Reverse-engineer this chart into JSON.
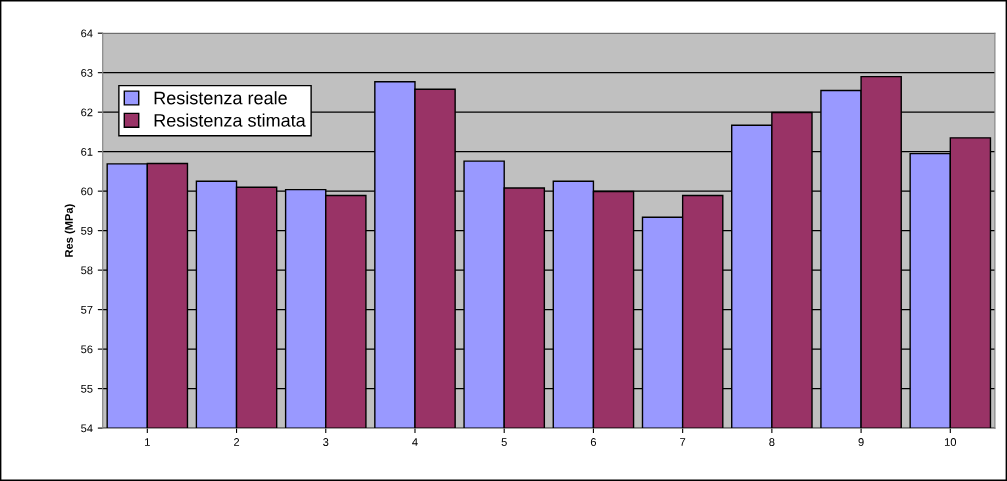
{
  "chart_data": {
    "type": "bar",
    "ylabel": "Res (MPa)",
    "categories": [
      "1",
      "2",
      "3",
      "4",
      "5",
      "6",
      "7",
      "8",
      "9",
      "10"
    ],
    "series": [
      {
        "name": "Resistenza reale",
        "color": "#9999ff",
        "values": [
          60.69,
          60.25,
          60.04,
          62.77,
          60.76,
          60.25,
          59.34,
          61.67,
          62.55,
          60.95
        ]
      },
      {
        "name": "Resistenza stimata",
        "color": "#993366",
        "values": [
          60.7,
          60.1,
          59.89,
          62.58,
          60.08,
          59.99,
          59.89,
          61.99,
          62.9,
          61.35
        ]
      }
    ],
    "ylim": [
      54,
      64
    ],
    "yticks": [
      54,
      55,
      56,
      57,
      58,
      59,
      60,
      61,
      62,
      63,
      64
    ],
    "grid": "y",
    "legend": "top left"
  }
}
